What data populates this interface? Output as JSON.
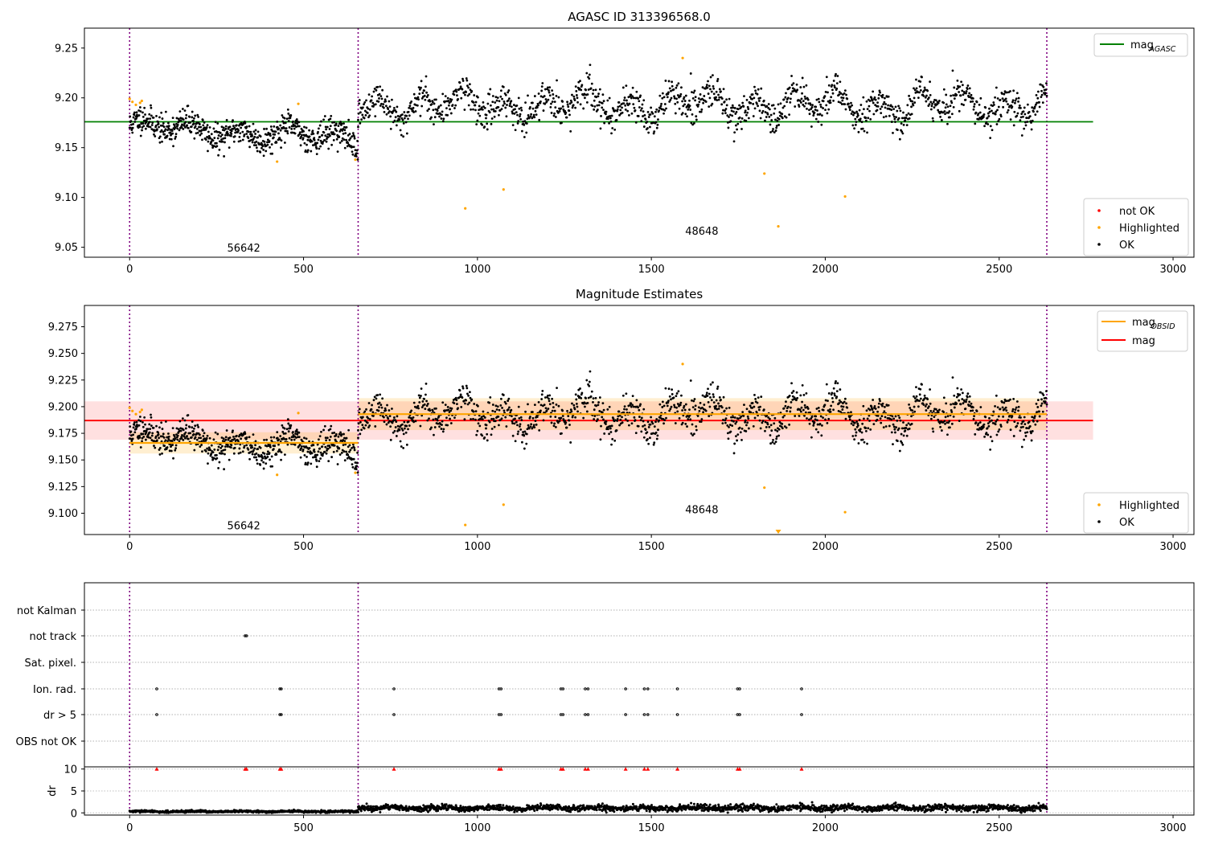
{
  "figure": {
    "panel1_title": "AGASC ID 313396568.0",
    "panel2_title": "Magnitude Estimates"
  },
  "chart_data": [
    {
      "type": "scatter",
      "title": "AGASC ID 313396568.0",
      "xlim": [
        -130,
        3060
      ],
      "ylim": [
        9.04,
        9.27
      ],
      "x_ticks": [
        0,
        500,
        1000,
        1500,
        2000,
        2500,
        3000
      ],
      "y_ticks": [
        9.05,
        9.1,
        9.15,
        9.2,
        9.25
      ],
      "y_tick_labels": [
        "9.05",
        "9.10",
        "9.15",
        "9.20",
        "9.25"
      ],
      "obs_boundaries": [
        0,
        657,
        2637
      ],
      "obs_labels": [
        {
          "text": "56642",
          "x": 328,
          "y": 9.049
        },
        {
          "text": "48648",
          "x": 1645,
          "y": 9.066
        }
      ],
      "reference_lines": [
        {
          "name": "mag_AGASC",
          "y": 9.176,
          "x0": -130,
          "x1": 2770,
          "color": "#008000"
        }
      ],
      "segments": [
        {
          "x0": 0,
          "x1": 657,
          "base": 9.172,
          "slope": -2e-05,
          "amplitude": 0.01,
          "noise": 0.007,
          "wave": 140,
          "count": 650
        },
        {
          "x0": 657,
          "x1": 2637,
          "base": 9.193,
          "slope": 0,
          "amplitude": 0.017,
          "noise": 0.008,
          "wave": 120,
          "count": 1450
        }
      ],
      "highlighted_points": [
        [
          0,
          9.199
        ],
        [
          8,
          9.196
        ],
        [
          18,
          9.193
        ],
        [
          30,
          9.195
        ],
        [
          35,
          9.197
        ],
        [
          424,
          9.136
        ],
        [
          485,
          9.194
        ],
        [
          649,
          9.138
        ],
        [
          965,
          9.089
        ],
        [
          1075,
          9.108
        ],
        [
          1590,
          9.24
        ],
        [
          1825,
          9.124
        ],
        [
          1865,
          9.071
        ],
        [
          2057,
          9.101
        ]
      ],
      "legend_top": [
        {
          "label": "mag",
          "subscript": "AGASC",
          "color": "#008000"
        }
      ],
      "legend_bottom": [
        {
          "label": "not OK",
          "color": "#ff0000"
        },
        {
          "label": "Highlighted",
          "color": "#ffa500"
        },
        {
          "label": "OK",
          "color": "#000000"
        }
      ]
    },
    {
      "type": "scatter",
      "title": "Magnitude Estimates",
      "xlim": [
        -130,
        3060
      ],
      "ylim": [
        9.08,
        9.295
      ],
      "x_ticks": [
        0,
        500,
        1000,
        1500,
        2000,
        2500,
        3000
      ],
      "y_ticks": [
        9.1,
        9.125,
        9.15,
        9.175,
        9.2,
        9.225,
        9.25,
        9.275
      ],
      "y_tick_labels": [
        "9.100",
        "9.125",
        "9.150",
        "9.175",
        "9.200",
        "9.225",
        "9.250",
        "9.275"
      ],
      "obs_boundaries": [
        0,
        657,
        2637
      ],
      "obs_labels": [
        {
          "text": "56642",
          "x": 328,
          "y": 9.088
        },
        {
          "text": "48648",
          "x": 1645,
          "y": 9.103
        }
      ],
      "mag_band": {
        "y": 9.187,
        "low": 9.169,
        "high": 9.205,
        "x0": -130,
        "x1": 2770,
        "color": "#ff0000"
      },
      "obsid_mags": [
        {
          "x0": 0,
          "x1": 657,
          "y": 9.166,
          "low": 9.156,
          "high": 9.176
        },
        {
          "x0": 657,
          "x1": 2637,
          "y": 9.193,
          "low": 9.178,
          "high": 9.208
        }
      ],
      "segments": [
        {
          "x0": 0,
          "x1": 657,
          "base": 9.172,
          "slope": -2e-05,
          "amplitude": 0.01,
          "noise": 0.007,
          "wave": 140,
          "count": 650
        },
        {
          "x0": 657,
          "x1": 2637,
          "base": 9.193,
          "slope": 0,
          "amplitude": 0.017,
          "noise": 0.008,
          "wave": 120,
          "count": 1450
        }
      ],
      "highlighted_points": [
        [
          0,
          9.199
        ],
        [
          8,
          9.196
        ],
        [
          18,
          9.193
        ],
        [
          30,
          9.195
        ],
        [
          35,
          9.197
        ],
        [
          424,
          9.136
        ],
        [
          485,
          9.194
        ],
        [
          649,
          9.138
        ],
        [
          965,
          9.089
        ],
        [
          1075,
          9.108
        ],
        [
          1590,
          9.24
        ],
        [
          1825,
          9.124
        ],
        [
          2057,
          9.101
        ]
      ],
      "offscale_marker": {
        "x": 1865,
        "color": "#ffa500"
      },
      "legend_top": [
        {
          "label": "mag",
          "subscript": "OBSID",
          "color": "#ffa500"
        },
        {
          "label": "mag",
          "subscript": "",
          "color": "#ff0000"
        }
      ],
      "legend_bottom": [
        {
          "label": "Highlighted",
          "color": "#ffa500"
        },
        {
          "label": "OK",
          "color": "#000000"
        }
      ]
    },
    {
      "type": "scatter",
      "title": "",
      "xlim": [
        -130,
        3060
      ],
      "x_ticks": [
        0,
        500,
        1000,
        1500,
        2000,
        2500,
        3000
      ],
      "obs_boundaries": [
        0,
        657,
        2637
      ],
      "flag_rows": [
        "not Kalman",
        "not track",
        "Sat. pixel.",
        "Ion. rad.",
        "dr > 5",
        "OBS not OK"
      ],
      "flag_events": {
        "not track": [
          332,
          336
        ],
        "Ion. rad.": [
          78,
          432,
          436,
          760,
          1062,
          1068,
          1240,
          1246,
          1310,
          1318,
          1426,
          1480,
          1490,
          1575,
          1748,
          1754,
          1932
        ],
        "dr > 5": [
          78,
          432,
          436,
          760,
          1062,
          1068,
          1240,
          1246,
          1310,
          1318,
          1426,
          1480,
          1490,
          1575,
          1748,
          1754,
          1932
        ]
      },
      "dr_ylabel": "dr",
      "dr_ylim": [
        -0.5,
        10.5
      ],
      "dr_ticks": [
        0,
        5,
        10
      ],
      "dr_clip_markers": [
        78,
        332,
        336,
        432,
        436,
        760,
        1062,
        1068,
        1240,
        1246,
        1310,
        1318,
        1426,
        1480,
        1490,
        1575,
        1748,
        1754,
        1932
      ],
      "dr_series": [
        {
          "x0": 0,
          "x1": 657,
          "base": 0.3,
          "noise": 0.12
        },
        {
          "x0": 657,
          "x1": 2637,
          "base": 1.1,
          "noise": 0.35
        }
      ]
    }
  ]
}
